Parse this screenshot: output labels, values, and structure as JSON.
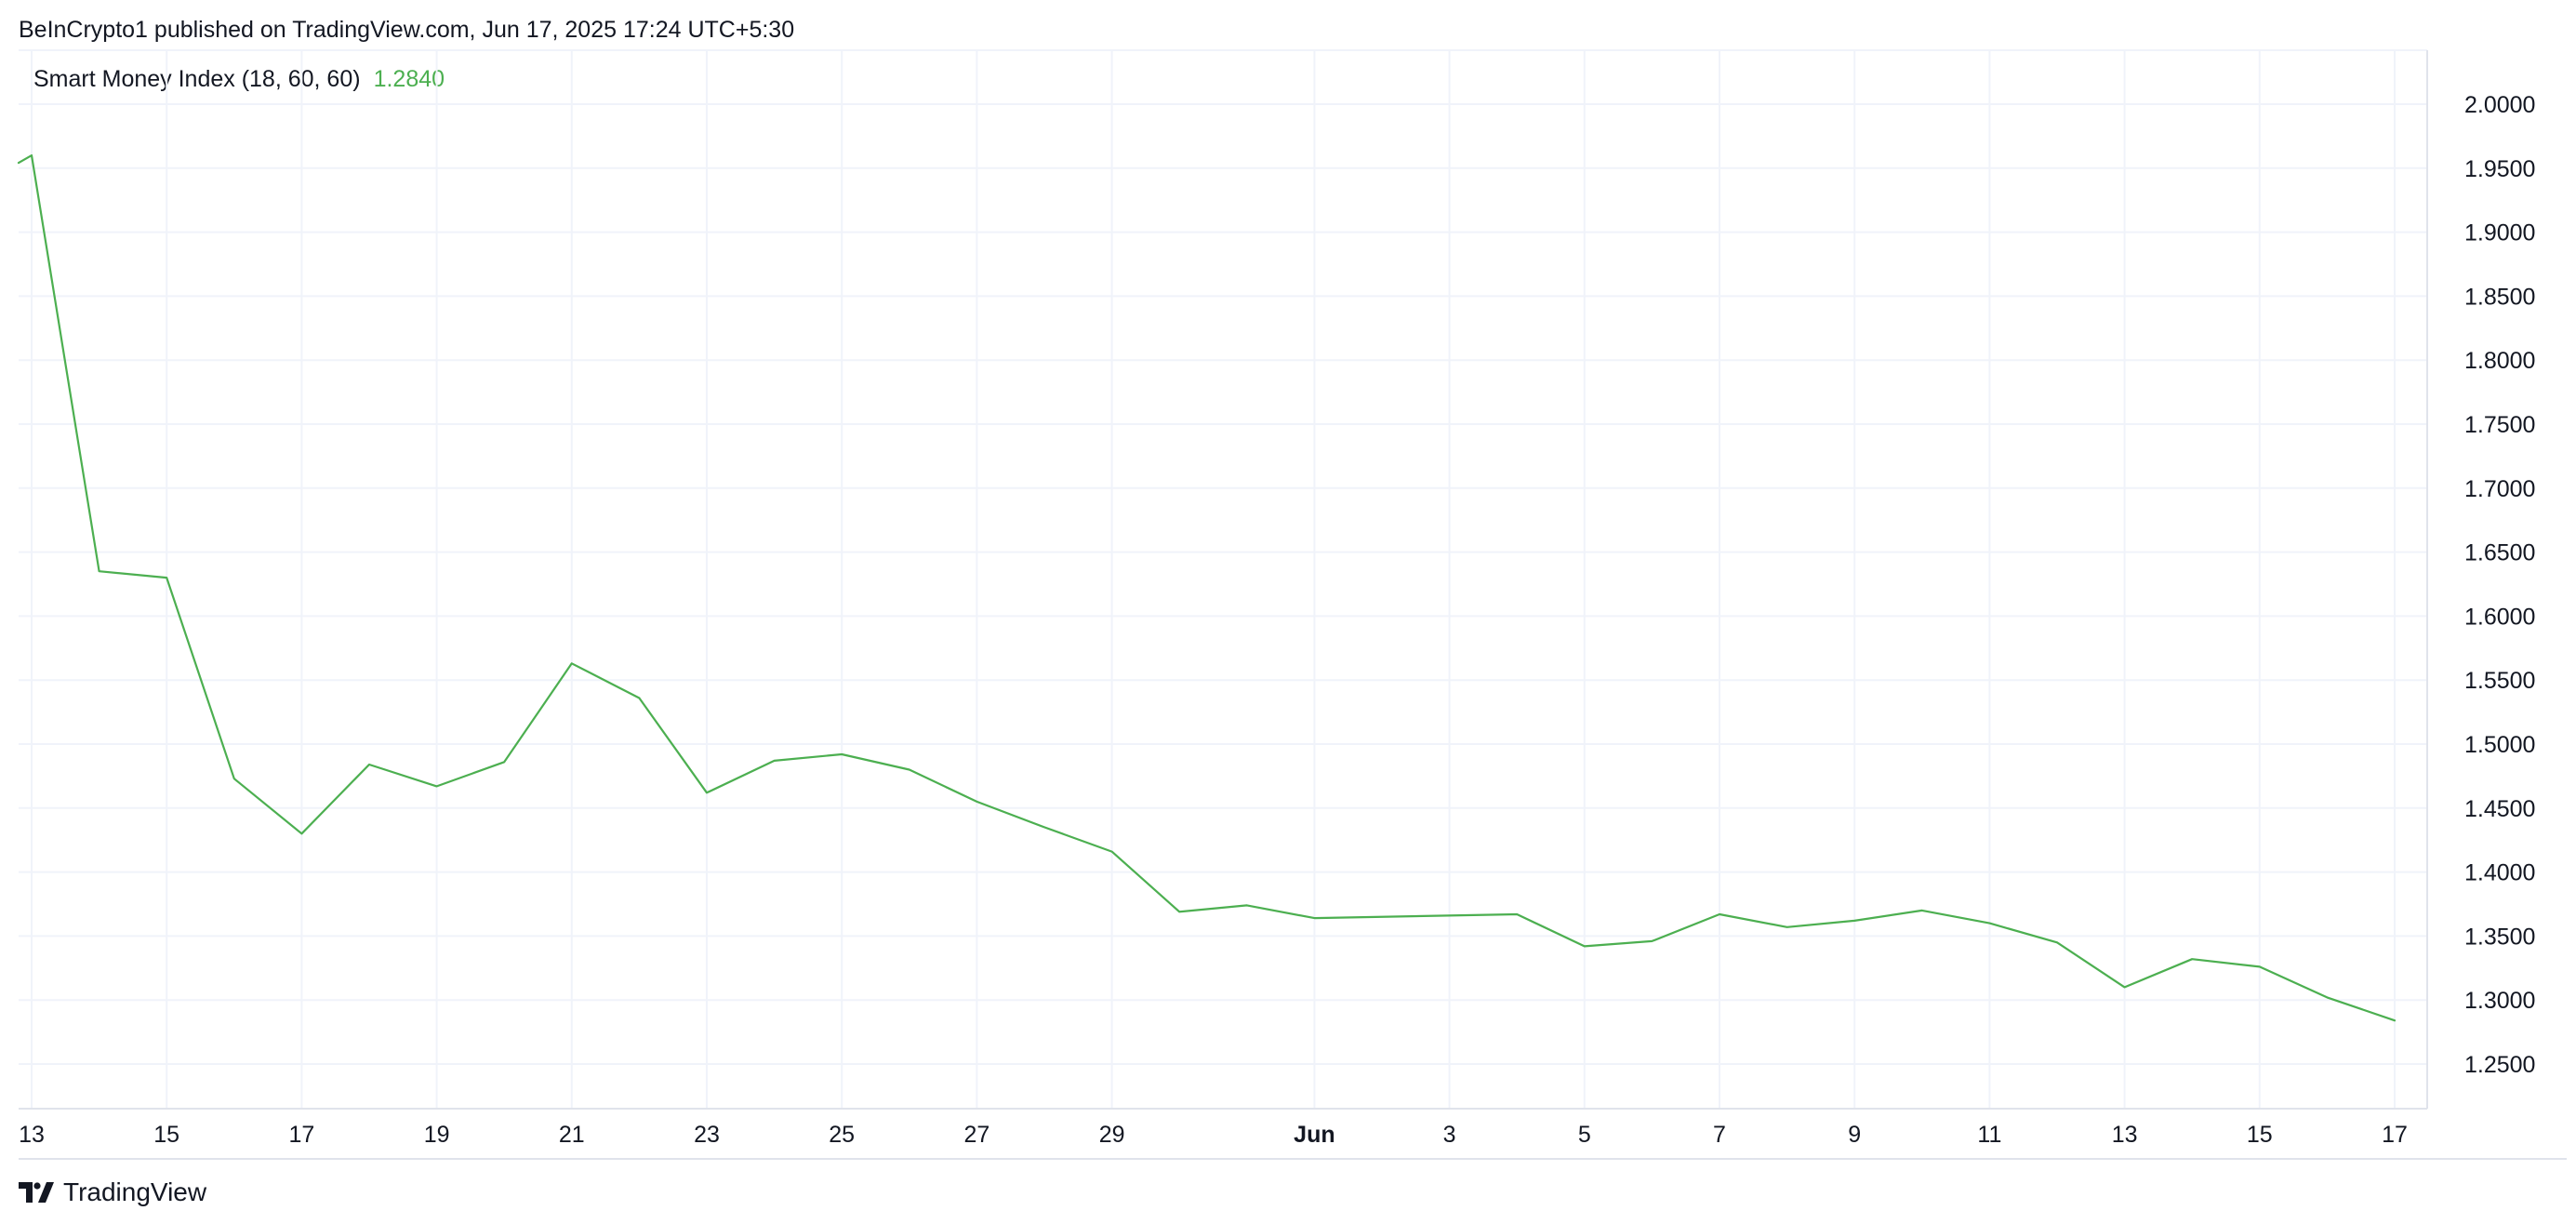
{
  "header": {
    "publish_text": "BeInCrypto1 published on TradingView.com, Jun 17, 2025 17:24 UTC+5:30"
  },
  "legend": {
    "indicator": "Smart Money Index (18, 60, 60)",
    "current_value": "1.2840"
  },
  "footer": {
    "brand": "TradingView",
    "logo_icon": "tradingview-logo-icon"
  },
  "colors": {
    "line": "#4caf50",
    "value": "#4caf50",
    "grid": "#f0f3fa",
    "text": "#131722"
  },
  "chart_data": {
    "type": "line",
    "title": "",
    "xlabel": "",
    "ylabel": "",
    "ylim": [
      1.22,
      2.02
    ],
    "y_ticks": [
      "2.0000",
      "1.9500",
      "1.9000",
      "1.8500",
      "1.8000",
      "1.7500",
      "1.7000",
      "1.6500",
      "1.6000",
      "1.5500",
      "1.5000",
      "1.4500",
      "1.4000",
      "1.3500",
      "1.3000",
      "1.2500"
    ],
    "x_ticks": [
      {
        "date": "2025-05-13",
        "label": "13",
        "bold": false
      },
      {
        "date": "2025-05-15",
        "label": "15",
        "bold": false
      },
      {
        "date": "2025-05-17",
        "label": "17",
        "bold": false
      },
      {
        "date": "2025-05-19",
        "label": "19",
        "bold": false
      },
      {
        "date": "2025-05-21",
        "label": "21",
        "bold": false
      },
      {
        "date": "2025-05-23",
        "label": "23",
        "bold": false
      },
      {
        "date": "2025-05-25",
        "label": "25",
        "bold": false
      },
      {
        "date": "2025-05-27",
        "label": "27",
        "bold": false
      },
      {
        "date": "2025-05-29",
        "label": "29",
        "bold": false
      },
      {
        "date": "2025-06-01",
        "label": "Jun",
        "bold": true
      },
      {
        "date": "2025-06-03",
        "label": "3",
        "bold": false
      },
      {
        "date": "2025-06-05",
        "label": "5",
        "bold": false
      },
      {
        "date": "2025-06-07",
        "label": "7",
        "bold": false
      },
      {
        "date": "2025-06-09",
        "label": "9",
        "bold": false
      },
      {
        "date": "2025-06-11",
        "label": "11",
        "bold": false
      },
      {
        "date": "2025-06-13",
        "label": "13",
        "bold": false
      },
      {
        "date": "2025-06-15",
        "label": "15",
        "bold": false
      },
      {
        "date": "2025-06-17",
        "label": "17",
        "bold": false
      }
    ],
    "grid": true,
    "series": [
      {
        "color": "#4caf50",
        "points": [
          {
            "x": "2025-05-13",
            "y": 1.96
          },
          {
            "x": "2025-05-14",
            "y": 1.635
          },
          {
            "x": "2025-05-15",
            "y": 1.63
          },
          {
            "x": "2025-05-16",
            "y": 1.473
          },
          {
            "x": "2025-05-17",
            "y": 1.43
          },
          {
            "x": "2025-05-18",
            "y": 1.484
          },
          {
            "x": "2025-05-19",
            "y": 1.467
          },
          {
            "x": "2025-05-20",
            "y": 1.486
          },
          {
            "x": "2025-05-21",
            "y": 1.563
          },
          {
            "x": "2025-05-22",
            "y": 1.536
          },
          {
            "x": "2025-05-23",
            "y": 1.462
          },
          {
            "x": "2025-05-24",
            "y": 1.487
          },
          {
            "x": "2025-05-25",
            "y": 1.492
          },
          {
            "x": "2025-05-26",
            "y": 1.48
          },
          {
            "x": "2025-05-27",
            "y": 1.455
          },
          {
            "x": "2025-05-28",
            "y": 1.435
          },
          {
            "x": "2025-05-29",
            "y": 1.416
          },
          {
            "x": "2025-05-30",
            "y": 1.369
          },
          {
            "x": "2025-05-31",
            "y": 1.374
          },
          {
            "x": "2025-06-01",
            "y": 1.364
          },
          {
            "x": "2025-06-04",
            "y": 1.367
          },
          {
            "x": "2025-06-05",
            "y": 1.342
          },
          {
            "x": "2025-06-06",
            "y": 1.346
          },
          {
            "x": "2025-06-07",
            "y": 1.367
          },
          {
            "x": "2025-06-08",
            "y": 1.357
          },
          {
            "x": "2025-06-09",
            "y": 1.362
          },
          {
            "x": "2025-06-10",
            "y": 1.37
          },
          {
            "x": "2025-06-11",
            "y": 1.36
          },
          {
            "x": "2025-06-12",
            "y": 1.345
          },
          {
            "x": "2025-06-13",
            "y": 1.31
          },
          {
            "x": "2025-06-14",
            "y": 1.332
          },
          {
            "x": "2025-06-15",
            "y": 1.326
          },
          {
            "x": "2025-06-16",
            "y": 1.302
          },
          {
            "x": "2025-06-17",
            "y": 1.284
          }
        ]
      }
    ]
  }
}
